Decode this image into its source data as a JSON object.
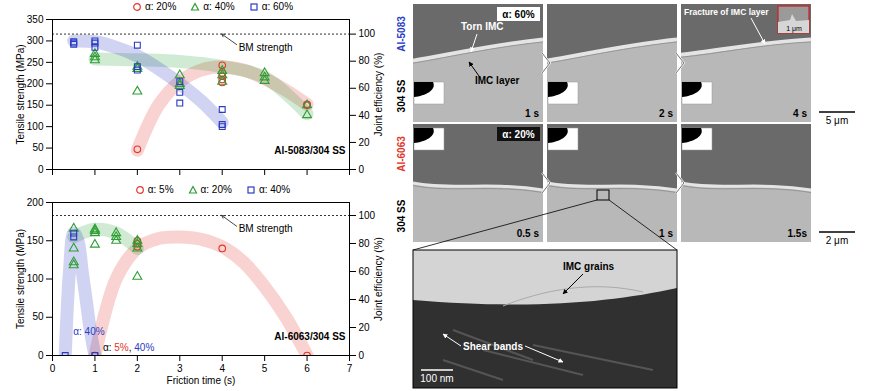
{
  "chart_data": [
    {
      "type": "scatter",
      "y_label": "Tensile strength (MPa)",
      "y2_label": "Joint efficiency (%)",
      "panel_label": "Al-5083/304 SS",
      "xlim": [
        0,
        7
      ],
      "xticks": [
        0,
        1,
        2,
        3,
        4,
        5,
        6,
        7
      ],
      "ylim": [
        0,
        350
      ],
      "yticks": [
        0,
        50,
        100,
        150,
        200,
        250,
        300,
        350
      ],
      "y2lim": [
        0,
        110.8
      ],
      "y2ticks": [
        0,
        20,
        40,
        60,
        80,
        100
      ],
      "tick_labels": "y",
      "legend": "top",
      "reference_line": {
        "label": "BM strength",
        "value": 316
      },
      "series": [
        {
          "name": "α: 20%",
          "color": "#e0362c",
          "marker": "circle",
          "x": [
            2,
            4,
            4,
            4,
            4,
            4,
            6,
            6
          ],
          "values": [
            47,
            243,
            225,
            218,
            210,
            203,
            152,
            150
          ],
          "trend": {
            "x": [
              2,
              2.5,
              3,
              3.5,
              4,
              4.5,
              5,
              5.5,
              6
            ],
            "values": [
              45,
              150,
              205,
              232,
              240,
              232,
              212,
              185,
              152
            ]
          }
        },
        {
          "name": "α: 40%",
          "color": "#2f9e35",
          "marker": "triangle",
          "x": [
            1,
            1,
            1,
            2,
            2,
            2,
            3,
            3,
            3,
            4,
            4,
            4,
            5,
            5,
            5,
            6,
            6
          ],
          "values": [
            270,
            262,
            255,
            240,
            235,
            182,
            220,
            200,
            195,
            230,
            220,
            205,
            225,
            215,
            207,
            150,
            127
          ],
          "trend": {
            "x": [
              1,
              2,
              3,
              4,
              5,
              6
            ],
            "values": [
              258,
              256,
              252,
              240,
              215,
              130
            ]
          }
        },
        {
          "name": "α: 60%",
          "color": "#2a3cc4",
          "marker": "square",
          "x": [
            0.5,
            0.5,
            0.5,
            1,
            1,
            1,
            2,
            2,
            2,
            3,
            3,
            3,
            4,
            4,
            4
          ],
          "values": [
            298,
            295,
            292,
            300,
            295,
            285,
            290,
            240,
            232,
            205,
            180,
            155,
            140,
            105,
            100
          ],
          "trend": {
            "x": [
              0.5,
              1,
              1.5,
              2,
              2.5,
              3,
              3.5,
              4
            ],
            "values": [
              300,
              298,
              285,
              265,
              235,
              200,
              160,
              110
            ]
          }
        }
      ]
    },
    {
      "type": "scatter",
      "x_label": "Friction time (s)",
      "y_label": "Tensile strength (MPa)",
      "y2_label": "Joint efficiency (%)",
      "panel_label": "Al-6063/304 SS",
      "xlim": [
        0,
        7
      ],
      "xticks": [
        0,
        1,
        2,
        3,
        4,
        5,
        6,
        7
      ],
      "ylim": [
        0,
        200
      ],
      "yticks": [
        0,
        50,
        100,
        150,
        200
      ],
      "y2lim": [
        0,
        109.3
      ],
      "y2ticks": [
        0,
        20,
        40,
        60,
        80,
        100
      ],
      "legend": "top",
      "reference_line": {
        "label": "BM strength",
        "value": 183
      },
      "annotations": [
        {
          "x": 0.3,
          "y": 0,
          "parts": [
            {
              "text": "α: 40%",
              "color": "#2a3cc4"
            }
          ]
        },
        {
          "x": 1,
          "y": 0,
          "parts": [
            {
              "text": "α: ",
              "color": "#000000"
            },
            {
              "text": "5%",
              "color": "#e0362c"
            },
            {
              "text": ", ",
              "color": "#000000"
            },
            {
              "text": "40%",
              "color": "#2a3cc4"
            }
          ]
        }
      ],
      "series": [
        {
          "name": "α: 5%",
          "color": "#e0362c",
          "marker": "circle",
          "x": [
            1,
            2,
            2,
            2,
            4,
            6
          ],
          "values": [
            0,
            150,
            146,
            142,
            140,
            0
          ],
          "trend": {
            "x": [
              1,
              1.5,
              2,
              2.5,
              3,
              3.5,
              4,
              4.5,
              5,
              5.5,
              6
            ],
            "values": [
              0,
              100,
              140,
              153,
              155,
              152,
              142,
              122,
              90,
              50,
              0
            ]
          }
        },
        {
          "name": "α: 20%",
          "color": "#2f9e35",
          "marker": "triangle",
          "x": [
            0.5,
            0.5,
            0.5,
            0.5,
            1,
            1,
            1,
            1,
            1.5,
            1.5,
            1.5,
            2,
            2,
            2,
            2
          ],
          "values": [
            166,
            140,
            122,
            118,
            165,
            163,
            160,
            145,
            160,
            155,
            150,
            150,
            146,
            140,
            103
          ],
          "trend": {
            "x": [
              0.5,
              1,
              1.5,
              2
            ],
            "values": [
              155,
              165,
              160,
              140
            ]
          }
        },
        {
          "name": "α: 40%",
          "color": "#2a3cc4",
          "marker": "square",
          "x": [
            0.3,
            0.5,
            0.5,
            1
          ],
          "values": [
            0,
            160,
            155,
            0
          ],
          "trend": {
            "x": [
              0.3,
              0.4,
              0.5,
              0.6,
              0.7,
              0.8,
              0.9,
              1
            ],
            "values": [
              0,
              110,
              160,
              150,
              110,
              70,
              30,
              0
            ]
          }
        }
      ]
    }
  ],
  "micrographs": {
    "rows": [
      {
        "alloy": "Al-5083",
        "color": "#2a3cc4",
        "substrate": "304 SS",
        "alpha": "α: 60%",
        "times": [
          "1 s",
          "2 s",
          "4 s"
        ],
        "scale_bar": "5 μm",
        "labels": [
          "Torn IMC",
          "IMC layer",
          "Fracture of IMC layer"
        ],
        "inset_scale_bar": "1 μm"
      },
      {
        "alloy": "Al-6063",
        "color": "#e0362c",
        "substrate": "304 SS",
        "alpha": "α: 20%",
        "times": [
          "0.5 s",
          "1 s",
          "1.5s"
        ],
        "scale_bar": "2 μm"
      }
    ],
    "zoom": {
      "labels": [
        "IMC grains",
        "Shear bands"
      ],
      "scale_bar": "100 nm"
    }
  }
}
